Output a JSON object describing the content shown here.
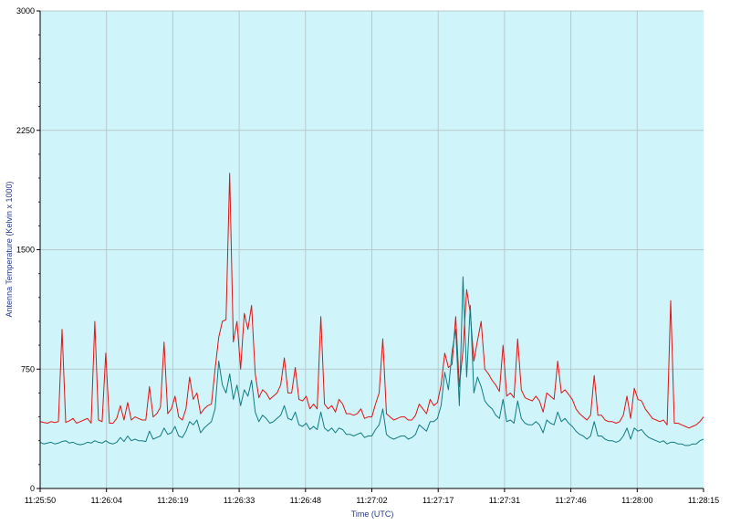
{
  "chart_data": {
    "type": "line",
    "xlabel": "Time (UTC)",
    "ylabel": "Antenna Temperature (Kelvin x 1000)",
    "ylim": [
      0,
      3000
    ],
    "y_ticks": [
      0,
      750,
      1500,
      2250,
      3000
    ],
    "y_tick_labels": [
      "0",
      "750",
      "1500",
      "2250",
      "3000"
    ],
    "x_tick_labels": [
      "11:25:50",
      "11:26:04",
      "11:26:19",
      "11:26:33",
      "11:26:48",
      "11:27:02",
      "11:27:17",
      "11:27:31",
      "11:27:46",
      "11:28:00",
      "11:28:15"
    ],
    "grid": true,
    "legend": "none",
    "colors": {
      "plot_background": "#cff5fb",
      "grid": "#b8c8cc",
      "series_1": "#e01414",
      "series_2": "#127a80"
    },
    "series": [
      {
        "color": "#e01414",
        "values": [
          420,
          415,
          410,
          420,
          415,
          420,
          1000,
          415,
          425,
          440,
          410,
          420,
          430,
          440,
          410,
          1050,
          430,
          420,
          850,
          410,
          410,
          440,
          520,
          430,
          540,
          430,
          450,
          440,
          430,
          430,
          640,
          450,
          470,
          510,
          920,
          470,
          500,
          580,
          450,
          430,
          500,
          700,
          560,
          600,
          470,
          500,
          520,
          530,
          750,
          950,
          1050,
          1060,
          1980,
          920,
          1050,
          750,
          1100,
          1000,
          1150,
          720,
          570,
          620,
          600,
          560,
          580,
          600,
          650,
          820,
          600,
          600,
          760,
          560,
          550,
          580,
          500,
          530,
          500,
          1080,
          530,
          500,
          520,
          480,
          560,
          530,
          470,
          470,
          460,
          470,
          500,
          440,
          450,
          450,
          530,
          600,
          940,
          470,
          450,
          430,
          440,
          450,
          450,
          430,
          430,
          460,
          530,
          500,
          470,
          560,
          520,
          540,
          650,
          850,
          760,
          780,
          1080,
          640,
          870,
          1250,
          1100,
          800,
          930,
          1050,
          750,
          720,
          680,
          650,
          610,
          900,
          580,
          600,
          570,
          940,
          620,
          570,
          560,
          550,
          580,
          550,
          480,
          600,
          580,
          560,
          800,
          600,
          620,
          590,
          560,
          500,
          470,
          450,
          430,
          460,
          710,
          460,
          460,
          430,
          420,
          420,
          410,
          420,
          460,
          580,
          440,
          630,
          560,
          550,
          500,
          470,
          440,
          430,
          420,
          430,
          400,
          1180,
          410,
          410,
          400,
          390,
          380,
          390,
          400,
          420,
          450
        ]
      },
      {
        "color": "#127a80",
        "values": [
          290,
          280,
          285,
          290,
          280,
          285,
          295,
          300,
          285,
          290,
          280,
          275,
          280,
          290,
          285,
          300,
          290,
          285,
          300,
          285,
          280,
          290,
          320,
          295,
          330,
          300,
          310,
          300,
          300,
          295,
          360,
          310,
          320,
          330,
          380,
          340,
          350,
          390,
          330,
          320,
          360,
          420,
          400,
          430,
          350,
          380,
          400,
          420,
          500,
          800,
          650,
          600,
          720,
          560,
          650,
          520,
          620,
          580,
          680,
          480,
          420,
          460,
          440,
          410,
          420,
          440,
          460,
          520,
          440,
          430,
          480,
          400,
          390,
          410,
          370,
          390,
          370,
          480,
          380,
          360,
          380,
          350,
          380,
          370,
          340,
          340,
          330,
          340,
          350,
          320,
          330,
          330,
          370,
          400,
          500,
          340,
          320,
          310,
          320,
          330,
          330,
          310,
          320,
          340,
          400,
          380,
          360,
          420,
          420,
          440,
          520,
          730,
          620,
          860,
          1000,
          520,
          1330,
          700,
          1150,
          600,
          700,
          640,
          550,
          520,
          500,
          460,
          440,
          560,
          420,
          430,
          410,
          550,
          440,
          410,
          400,
          400,
          420,
          400,
          350,
          430,
          410,
          400,
          480,
          420,
          440,
          410,
          390,
          360,
          340,
          330,
          310,
          330,
          420,
          330,
          330,
          310,
          300,
          300,
          290,
          300,
          330,
          380,
          310,
          380,
          360,
          370,
          340,
          320,
          310,
          300,
          290,
          300,
          280,
          290,
          290,
          280,
          280,
          270,
          270,
          280,
          280,
          300,
          310
        ]
      }
    ]
  }
}
